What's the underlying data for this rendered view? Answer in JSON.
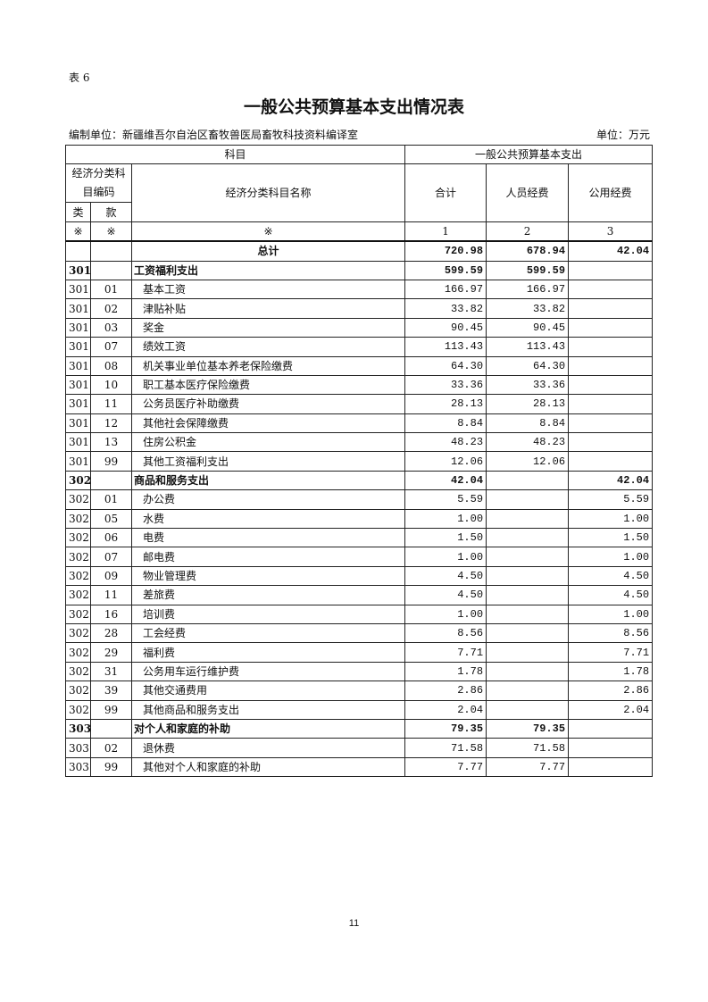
{
  "doc": {
    "table_no": "表 6",
    "title": "一般公共预算基本支出情况表",
    "org": "编制单位：新疆维吾尔自治区畜牧兽医局畜牧科技资料编译室",
    "unit": "单位：万元",
    "page_number": "11"
  },
  "header": {
    "subject": "科目",
    "budget": "一般公共预算基本支出",
    "code": "经济分类科目编码",
    "name": "经济分类科目名称",
    "total": "合计",
    "personnel": "人员经费",
    "public": "公用经费",
    "category": "类",
    "item": "款",
    "mark": "※",
    "col1": "1",
    "col2": "2",
    "col3": "3"
  },
  "grand_total": {
    "label": "总计",
    "total": "720.98",
    "personnel": "678.94",
    "public": "42.04"
  },
  "rows": [
    {
      "cat": "301",
      "item": "",
      "name": "工资福利支出",
      "total": "599.59",
      "personnel": "599.59",
      "public": "",
      "bold": true
    },
    {
      "cat": "301",
      "item": "01",
      "name": "基本工资",
      "total": "166.97",
      "personnel": "166.97",
      "public": ""
    },
    {
      "cat": "301",
      "item": "02",
      "name": "津贴补贴",
      "total": "33.82",
      "personnel": "33.82",
      "public": ""
    },
    {
      "cat": "301",
      "item": "03",
      "name": "奖金",
      "total": "90.45",
      "personnel": "90.45",
      "public": ""
    },
    {
      "cat": "301",
      "item": "07",
      "name": "绩效工资",
      "total": "113.43",
      "personnel": "113.43",
      "public": ""
    },
    {
      "cat": "301",
      "item": "08",
      "name": "机关事业单位基本养老保险缴费",
      "total": "64.30",
      "personnel": "64.30",
      "public": ""
    },
    {
      "cat": "301",
      "item": "10",
      "name": "职工基本医疗保险缴费",
      "total": "33.36",
      "personnel": "33.36",
      "public": ""
    },
    {
      "cat": "301",
      "item": "11",
      "name": "公务员医疗补助缴费",
      "total": "28.13",
      "personnel": "28.13",
      "public": ""
    },
    {
      "cat": "301",
      "item": "12",
      "name": "其他社会保障缴费",
      "total": "8.84",
      "personnel": "8.84",
      "public": ""
    },
    {
      "cat": "301",
      "item": "13",
      "name": "住房公积金",
      "total": "48.23",
      "personnel": "48.23",
      "public": ""
    },
    {
      "cat": "301",
      "item": "99",
      "name": "其他工资福利支出",
      "total": "12.06",
      "personnel": "12.06",
      "public": ""
    },
    {
      "cat": "302",
      "item": "",
      "name": "商品和服务支出",
      "total": "42.04",
      "personnel": "",
      "public": "42.04",
      "bold": true
    },
    {
      "cat": "302",
      "item": "01",
      "name": "办公费",
      "total": "5.59",
      "personnel": "",
      "public": "5.59"
    },
    {
      "cat": "302",
      "item": "05",
      "name": "水费",
      "total": "1.00",
      "personnel": "",
      "public": "1.00"
    },
    {
      "cat": "302",
      "item": "06",
      "name": "电费",
      "total": "1.50",
      "personnel": "",
      "public": "1.50"
    },
    {
      "cat": "302",
      "item": "07",
      "name": "邮电费",
      "total": "1.00",
      "personnel": "",
      "public": "1.00"
    },
    {
      "cat": "302",
      "item": "09",
      "name": "物业管理费",
      "total": "4.50",
      "personnel": "",
      "public": "4.50"
    },
    {
      "cat": "302",
      "item": "11",
      "name": "差旅费",
      "total": "4.50",
      "personnel": "",
      "public": "4.50"
    },
    {
      "cat": "302",
      "item": "16",
      "name": "培训费",
      "total": "1.00",
      "personnel": "",
      "public": "1.00"
    },
    {
      "cat": "302",
      "item": "28",
      "name": "工会经费",
      "total": "8.56",
      "personnel": "",
      "public": "8.56"
    },
    {
      "cat": "302",
      "item": "29",
      "name": "福利费",
      "total": "7.71",
      "personnel": "",
      "public": "7.71"
    },
    {
      "cat": "302",
      "item": "31",
      "name": "公务用车运行维护费",
      "total": "1.78",
      "personnel": "",
      "public": "1.78"
    },
    {
      "cat": "302",
      "item": "39",
      "name": "其他交通费用",
      "total": "2.86",
      "personnel": "",
      "public": "2.86"
    },
    {
      "cat": "302",
      "item": "99",
      "name": "其他商品和服务支出",
      "total": "2.04",
      "personnel": "",
      "public": "2.04"
    },
    {
      "cat": "303",
      "item": "",
      "name": "对个人和家庭的补助",
      "total": "79.35",
      "personnel": "79.35",
      "public": "",
      "bold": true
    },
    {
      "cat": "303",
      "item": "02",
      "name": "退休费",
      "total": "71.58",
      "personnel": "71.58",
      "public": ""
    },
    {
      "cat": "303",
      "item": "99",
      "name": "其他对个人和家庭的补助",
      "total": "7.77",
      "personnel": "7.77",
      "public": ""
    }
  ]
}
